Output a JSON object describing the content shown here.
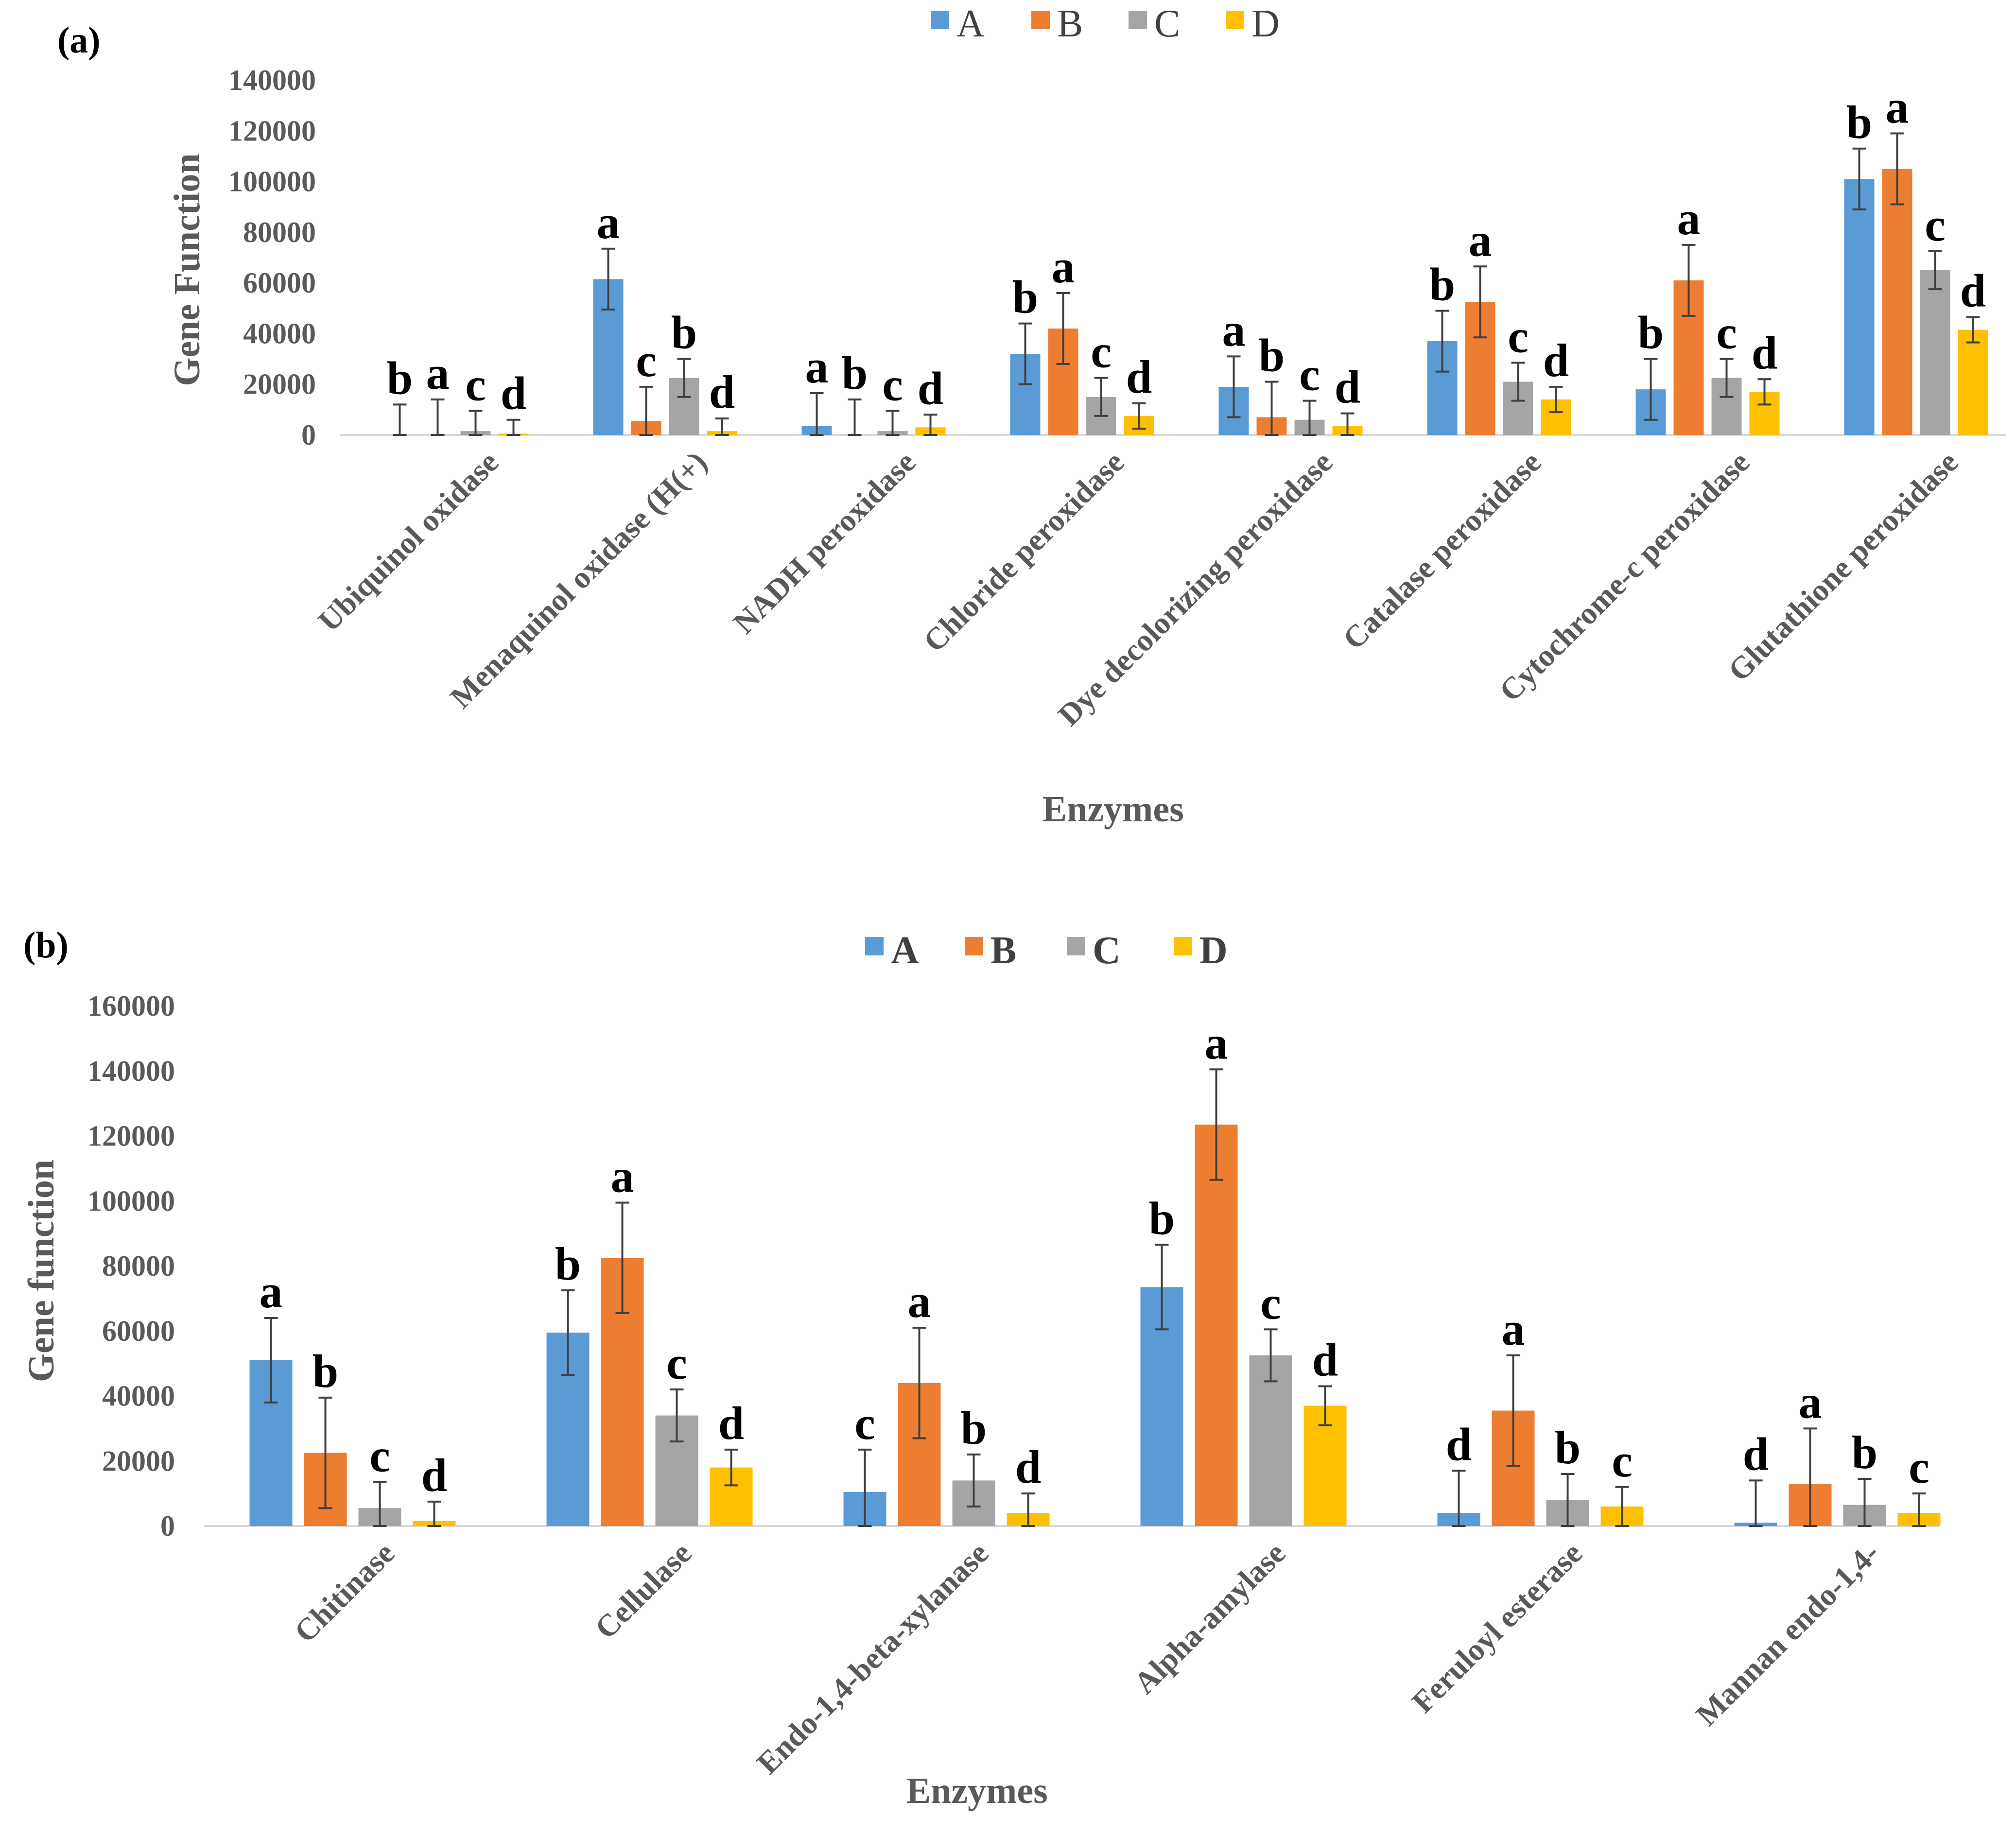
{
  "colors": {
    "A": "#5B9BD5",
    "B": "#ED7D31",
    "C": "#A5A5A5",
    "D": "#FFC000",
    "axis": "#D9D9D9",
    "errorbar": "#404040"
  },
  "chart_data": [
    {
      "type": "bar",
      "panel_label": "(a)",
      "ylabel": "Gene Function",
      "xlabel": "Enzymes",
      "ylim": [
        0,
        140000
      ],
      "yticks": [
        "0",
        "20000",
        "40000",
        "60000",
        "80000",
        "100000",
        "120000",
        "140000"
      ],
      "legend": [
        "A",
        "B",
        "C",
        "D"
      ],
      "legend_position": "top-center",
      "categories": [
        "Ubiquinol oxidase",
        "Menaquinol oxidase (H(+)",
        "NADH peroxidase",
        "Chloride peroxidase",
        "Dye decolorizing peroxidase",
        "Catalase peroxidase",
        "Cytochrome-c peroxidase",
        "Glutathione peroxidase"
      ],
      "series": [
        {
          "name": "A",
          "values": [
            0,
            61500,
            3500,
            32000,
            19000,
            37000,
            18000,
            101000
          ],
          "errors": [
            12000,
            12000,
            13000,
            12000,
            12000,
            12000,
            12000,
            12000
          ],
          "letters": [
            "b",
            "a",
            "a",
            "b",
            "a",
            "b",
            "b",
            "b"
          ]
        },
        {
          "name": "B",
          "values": [
            0,
            5500,
            0,
            42000,
            7000,
            52500,
            61000,
            105000
          ],
          "errors": [
            14000,
            13500,
            14000,
            14000,
            14000,
            14000,
            14000,
            14000
          ],
          "letters": [
            "a",
            "c",
            "b",
            "a",
            "b",
            "a",
            "a",
            "a"
          ]
        },
        {
          "name": "C",
          "values": [
            1500,
            22500,
            1500,
            15000,
            6000,
            21000,
            22500,
            65000
          ],
          "errors": [
            8000,
            7500,
            8000,
            7500,
            7500,
            7500,
            7500,
            7500
          ],
          "letters": [
            "c",
            "b",
            "c",
            "c",
            "c",
            "c",
            "c",
            "c"
          ]
        },
        {
          "name": "D",
          "values": [
            500,
            1500,
            3000,
            7500,
            3500,
            14000,
            17000,
            41500
          ],
          "errors": [
            5500,
            5000,
            5000,
            5000,
            5000,
            5000,
            5000,
            5000
          ],
          "letters": [
            "d",
            "d",
            "d",
            "d",
            "d",
            "d",
            "d",
            "d"
          ]
        }
      ]
    },
    {
      "type": "bar",
      "panel_label": "(b)",
      "ylabel": "Gene function",
      "xlabel": "Enzymes",
      "ylim": [
        0,
        160000
      ],
      "yticks": [
        "0",
        "20000",
        "40000",
        "60000",
        "80000",
        "100000",
        "120000",
        "140000",
        "160000"
      ],
      "legend": [
        "A",
        "B",
        "C",
        "D"
      ],
      "legend_position": "top-center",
      "categories": [
        "Chitinase",
        "Cellulase",
        "Endo-1,4-beta-xylanase",
        "Alpha-amylase",
        "Feruloyl esterase",
        "Mannan endo-1,4-"
      ],
      "series": [
        {
          "name": "A",
          "values": [
            51000,
            59500,
            10500,
            73500,
            4000,
            1000
          ],
          "errors": [
            13000,
            13000,
            13000,
            13000,
            13000,
            13000
          ],
          "letters": [
            "a",
            "b",
            "c",
            "b",
            "d",
            "d"
          ]
        },
        {
          "name": "B",
          "values": [
            22500,
            82500,
            44000,
            123500,
            35500,
            13000
          ],
          "errors": [
            17000,
            17000,
            17000,
            17000,
            17000,
            17000
          ],
          "letters": [
            "b",
            "a",
            "a",
            "a",
            "a",
            "a"
          ]
        },
        {
          "name": "C",
          "values": [
            5500,
            34000,
            14000,
            52500,
            8000,
            6500
          ],
          "errors": [
            8000,
            8000,
            8000,
            8000,
            8000,
            8000
          ],
          "letters": [
            "c",
            "c",
            "b",
            "c",
            "b",
            "b"
          ]
        },
        {
          "name": "D",
          "values": [
            1500,
            18000,
            4000,
            37000,
            6000,
            4000
          ],
          "errors": [
            6000,
            5500,
            6000,
            6000,
            6000,
            6000
          ],
          "letters": [
            "d",
            "d",
            "d",
            "d",
            "c",
            "c"
          ]
        }
      ]
    }
  ]
}
